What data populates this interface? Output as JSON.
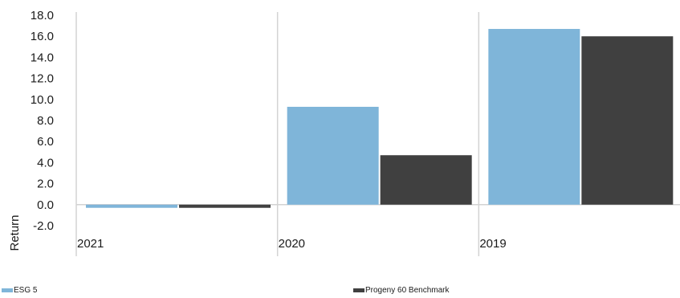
{
  "chart_data": {
    "type": "bar",
    "categories": [
      "2021",
      "2020",
      "2019"
    ],
    "series": [
      {
        "name": "ESG 5",
        "values": [
          -0.3,
          9.3,
          16.7
        ],
        "color": "#7fb5d9"
      },
      {
        "name": "Progeny 60 Benchmark",
        "values": [
          -0.3,
          4.7,
          16.0
        ],
        "color": "#404040"
      }
    ],
    "title": "",
    "xlabel": "",
    "ylabel": "Return",
    "ylim": [
      -2.0,
      18.0
    ],
    "yticks": [
      -2.0,
      0.0,
      2.0,
      4.0,
      6.0,
      8.0,
      10.0,
      12.0,
      14.0,
      16.0,
      18.0
    ],
    "grid": "vertical category separators",
    "legend_position": "bottom"
  }
}
